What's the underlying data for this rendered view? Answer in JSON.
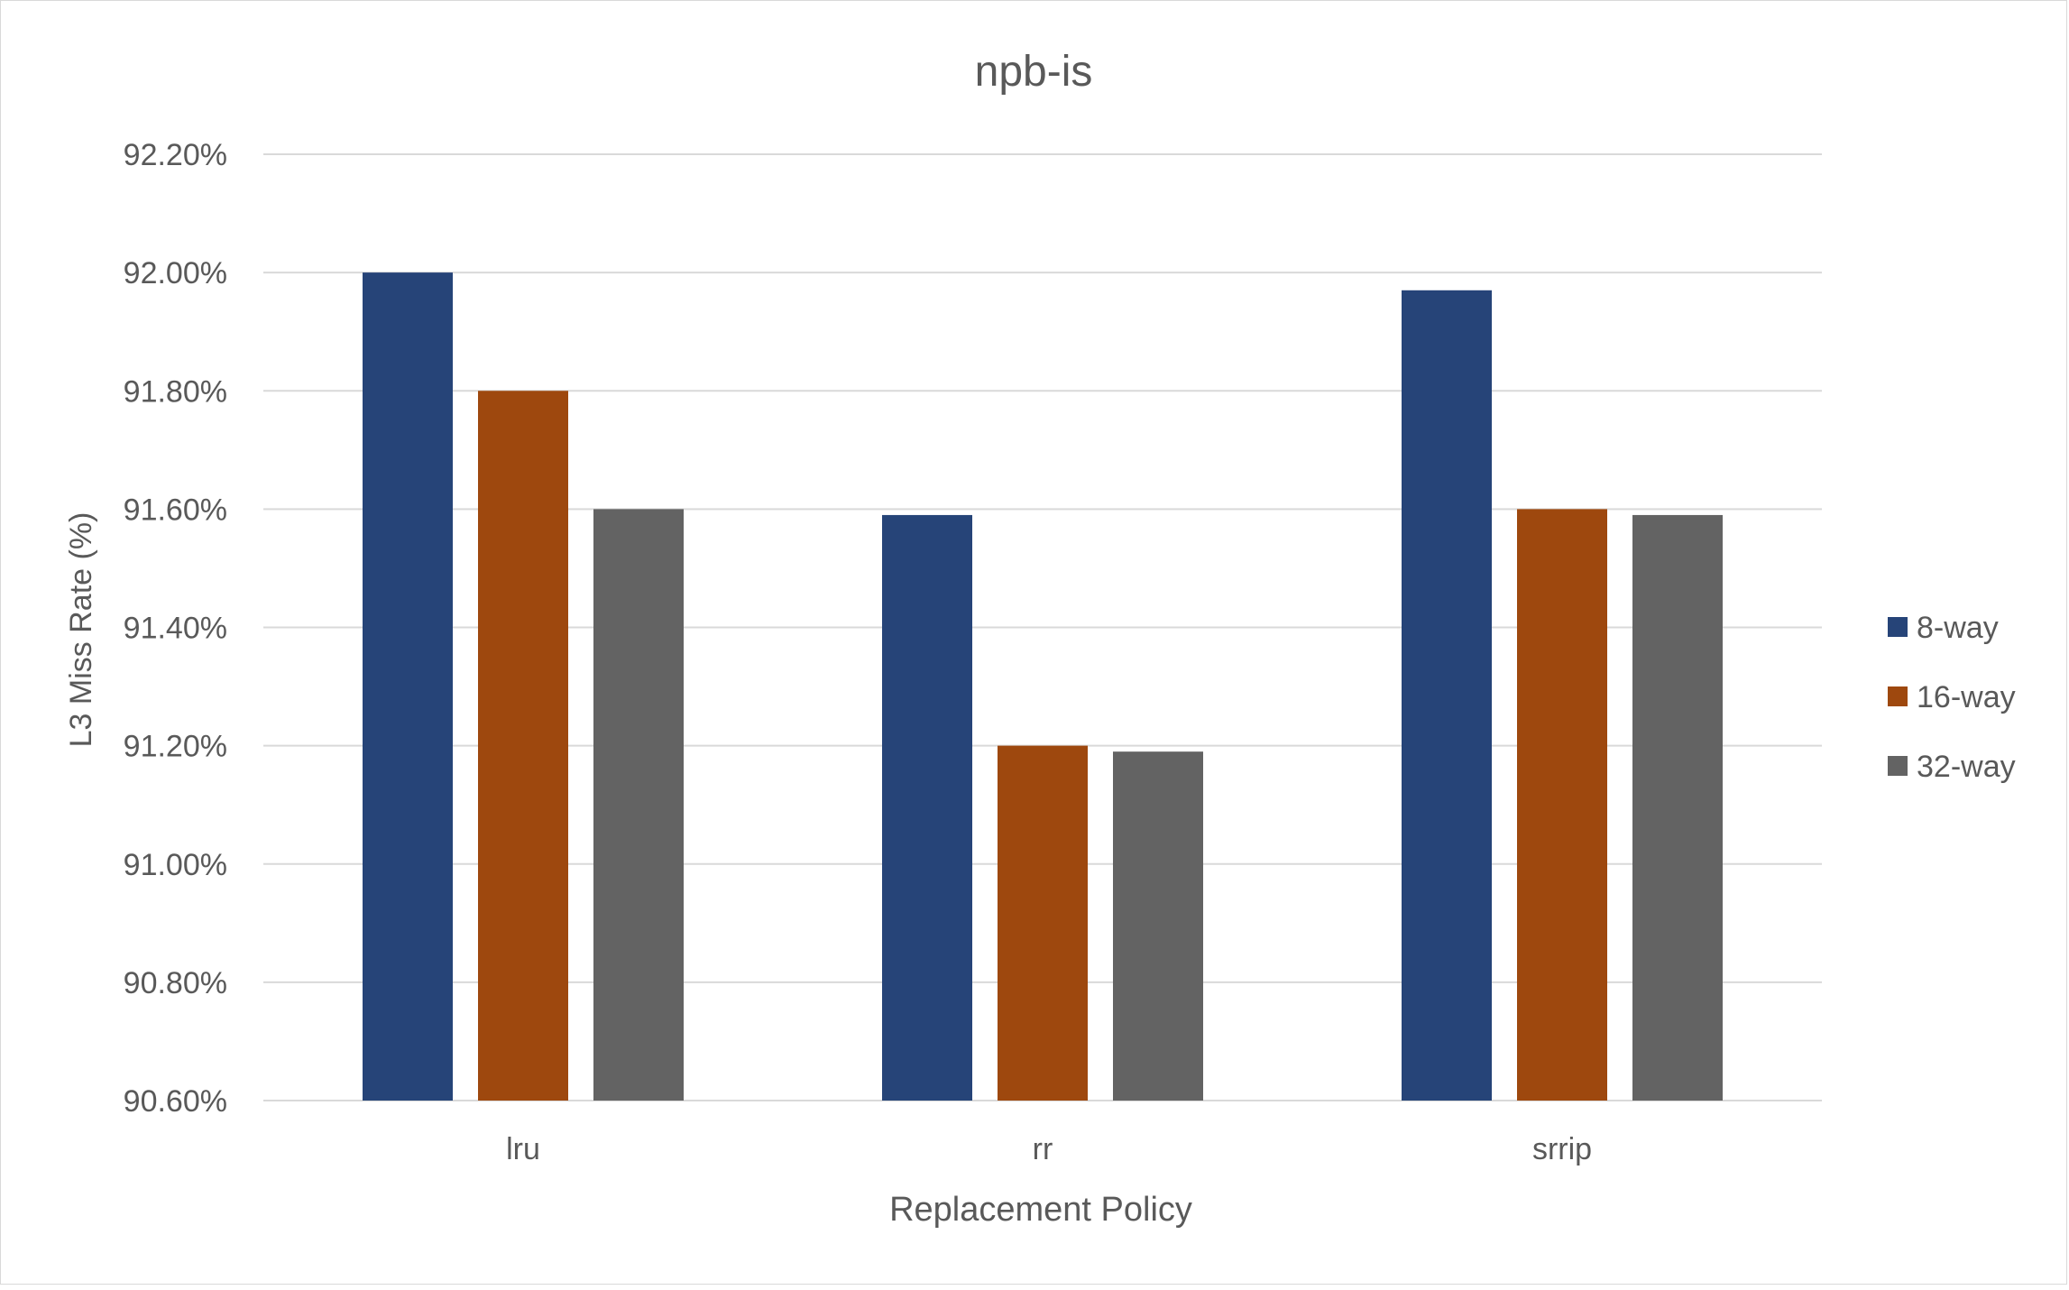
{
  "chart_data": {
    "type": "bar",
    "title": "npb-is",
    "xlabel": "Replacement Policy",
    "ylabel": "L3 Miss Rate (%)",
    "categories": [
      "lru",
      "rr",
      "srrip"
    ],
    "series": [
      {
        "name": "8-way",
        "color": "#264478",
        "values": [
          92.0,
          91.59,
          91.97
        ]
      },
      {
        "name": "16-way",
        "color": "#9e480e",
        "values": [
          91.8,
          91.2,
          91.6
        ]
      },
      {
        "name": "32-way",
        "color": "#636363",
        "values": [
          91.6,
          91.19,
          91.59
        ]
      }
    ],
    "ylim": [
      90.6,
      92.2
    ],
    "ytick_step": 0.2,
    "ytick_labels": [
      "90.60%",
      "90.80%",
      "91.00%",
      "91.20%",
      "91.40%",
      "91.60%",
      "91.80%",
      "92.00%",
      "92.20%"
    ],
    "grid": true,
    "legend_position": "right",
    "gridline_color": "#d9d9d9"
  }
}
